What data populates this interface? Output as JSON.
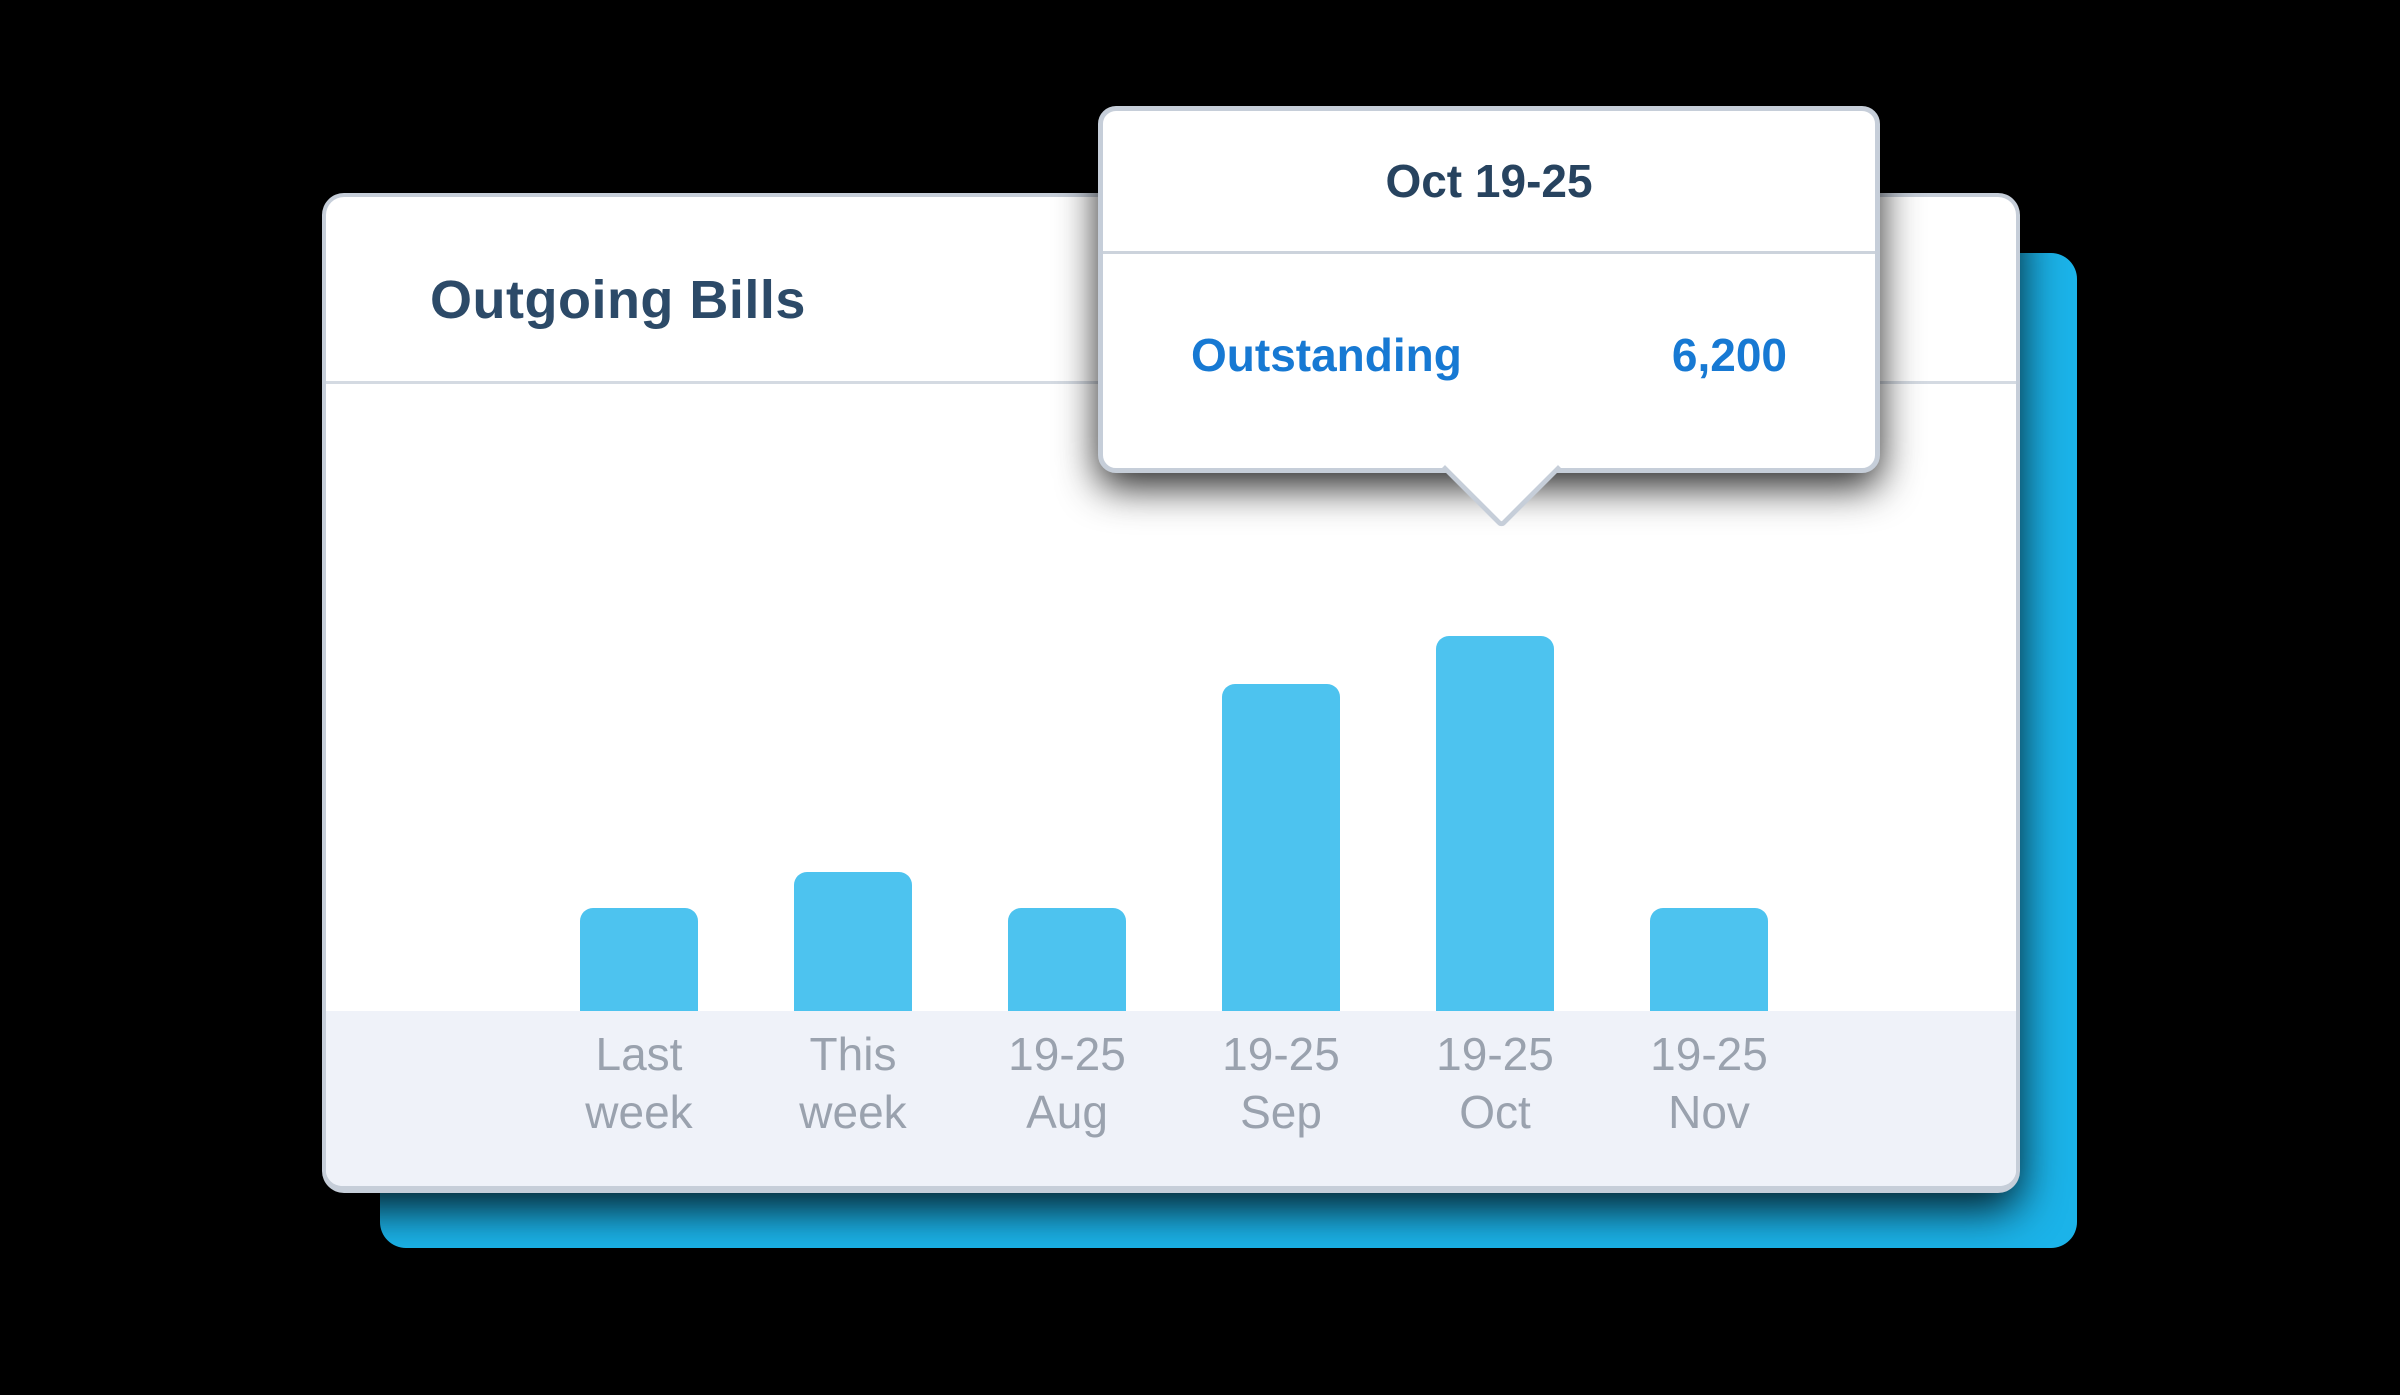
{
  "card": {
    "title": "Outgoing Bills"
  },
  "tooltip": {
    "title": "Oct 19-25",
    "series_label": "Outstanding",
    "value": "6,200"
  },
  "chart_data": {
    "type": "bar",
    "title": "Outgoing Bills",
    "categories": [
      "Last\nweek",
      "This\nweek",
      "19-25\nAug",
      "19-25\nSep",
      "19-25\nOct",
      "19-25\nNov"
    ],
    "values": [
      1700,
      2300,
      1700,
      5400,
      6200,
      1700
    ],
    "series_name": "Outstanding",
    "highlighted_category": "19-25\nOct",
    "highlighted_value": 6200,
    "xlabel": "",
    "ylabel": "",
    "ylim": [
      0,
      6500
    ],
    "grid": false,
    "legend": false
  },
  "colors": {
    "bar_blue": "#4dc3ef",
    "accent_card_blue": "#1bb3e9",
    "title_navy": "#2c4a68",
    "tooltip_title_navy": "#27435f",
    "tooltip_value_blue": "#1779d3",
    "axis_label_gray": "#9aa2ae",
    "footer_bg": "#eff2f9",
    "card_border_gray": "#c6ced9"
  }
}
